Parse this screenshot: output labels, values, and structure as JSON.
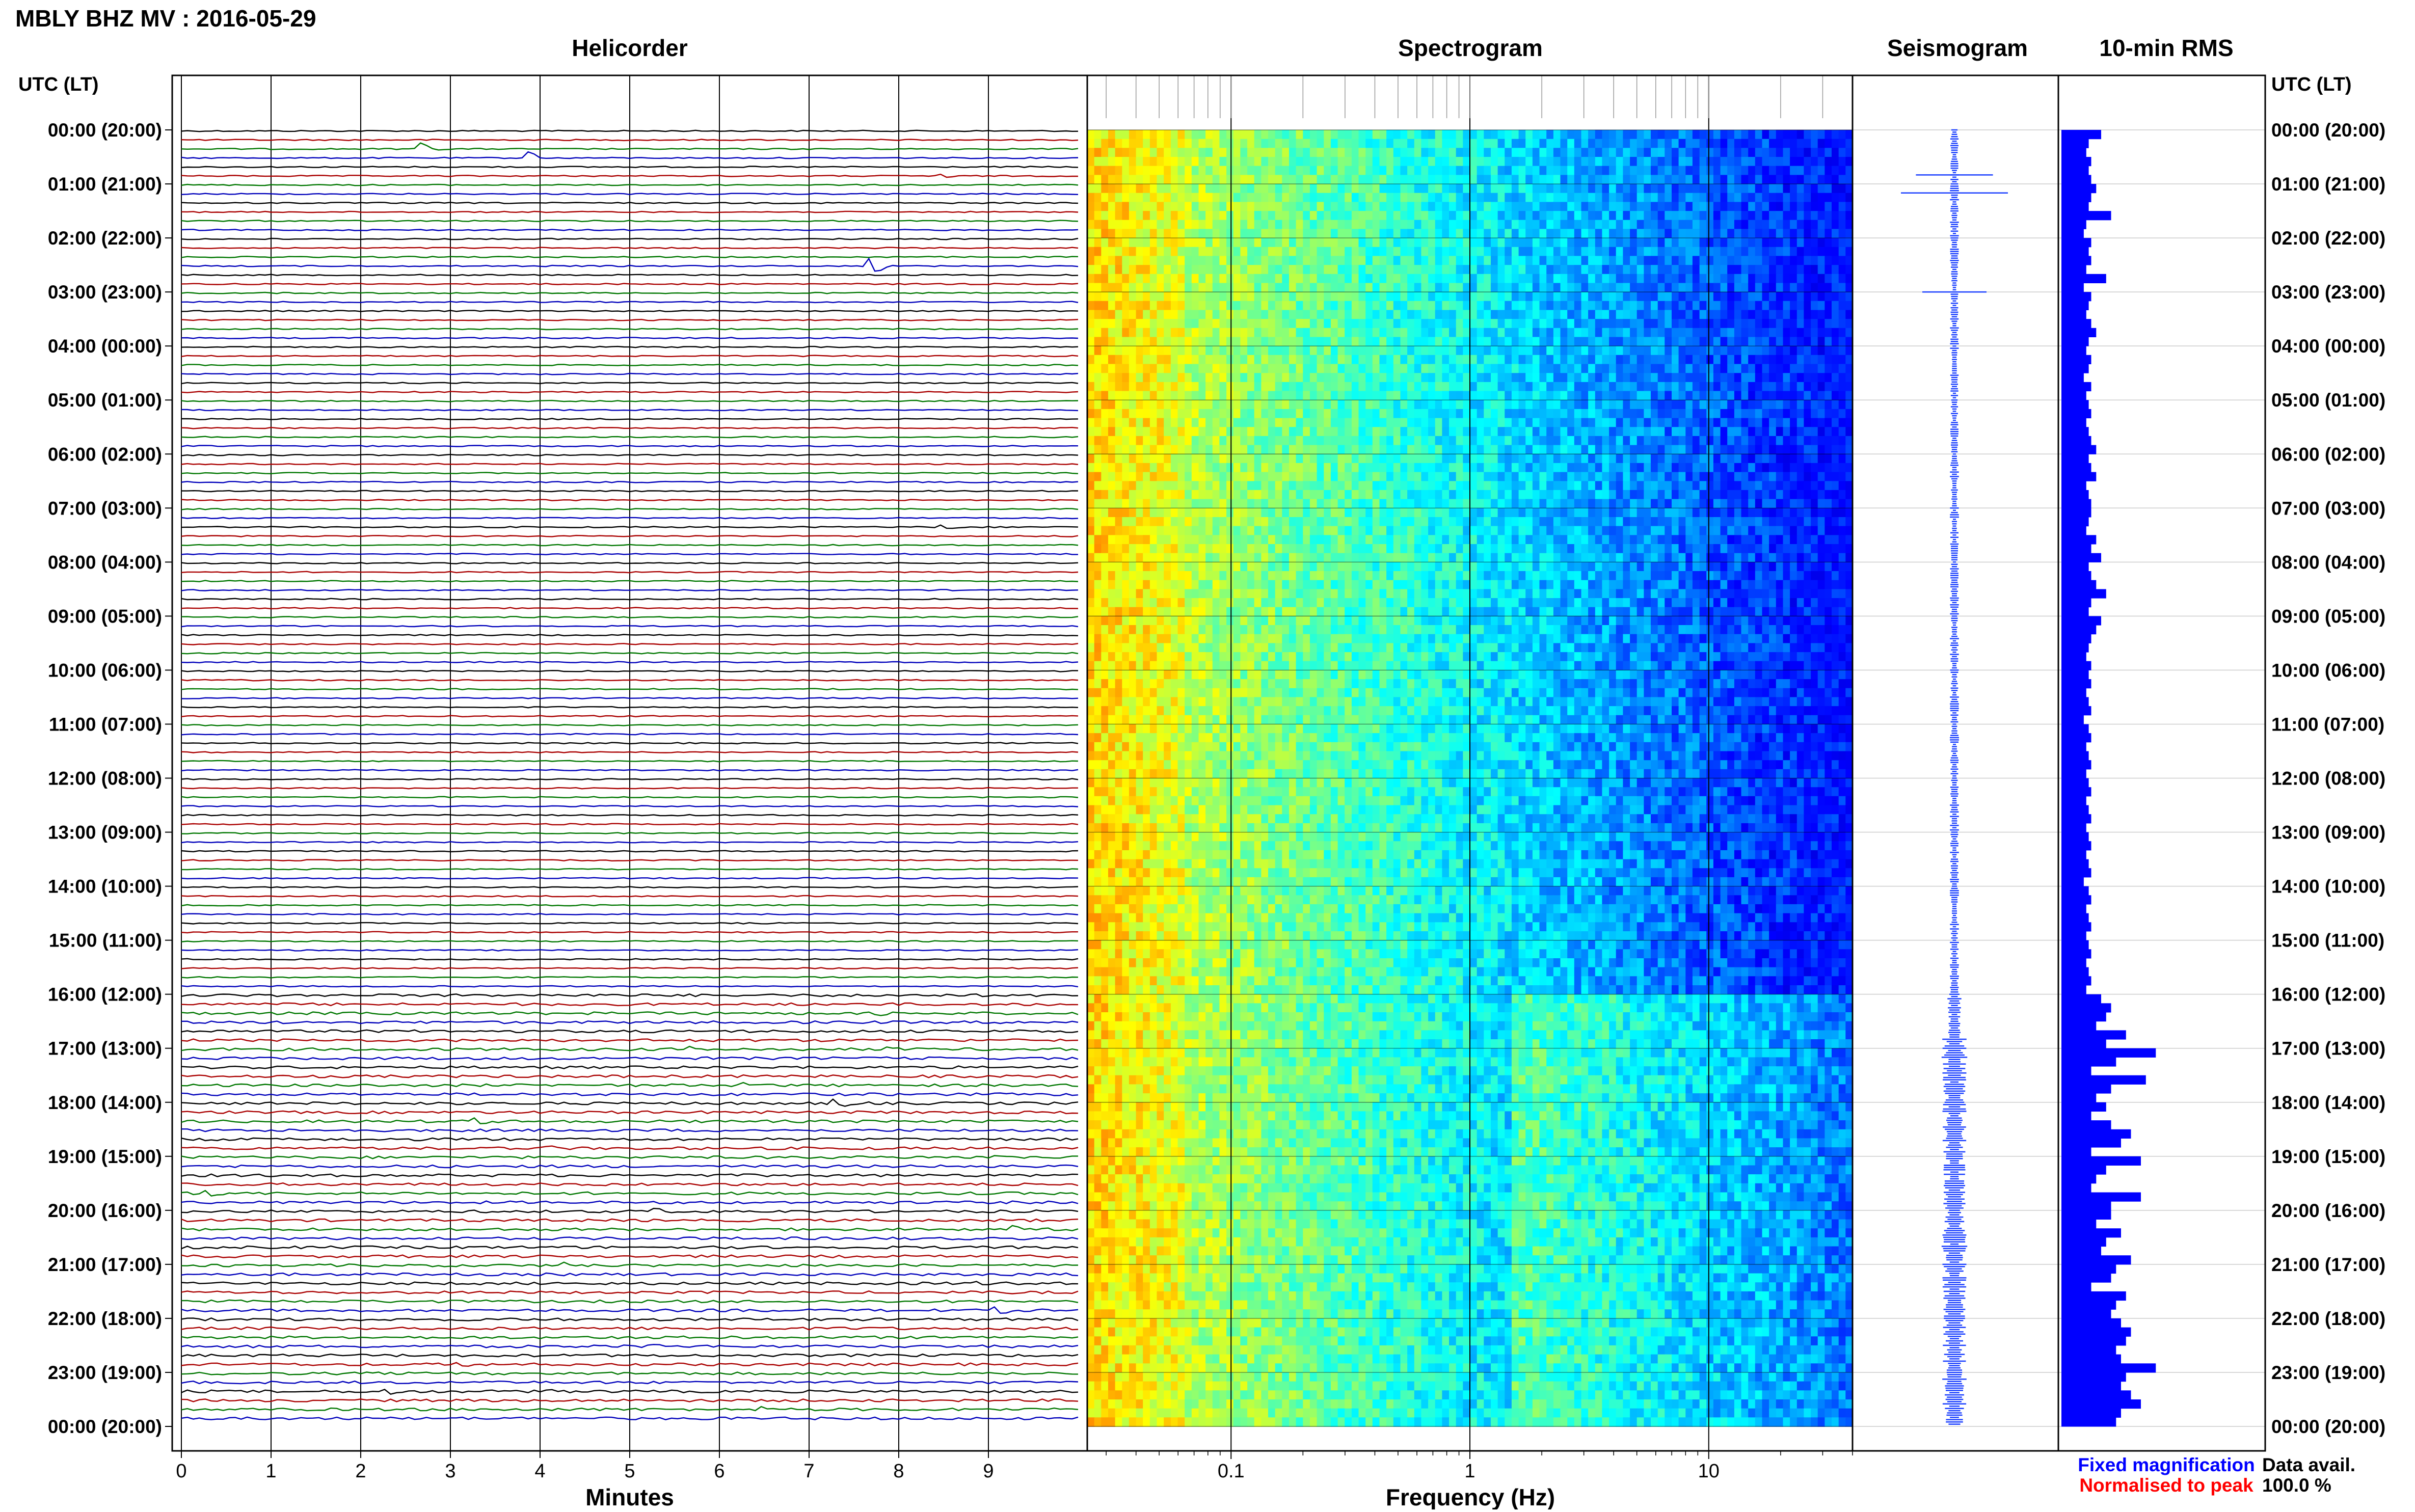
{
  "figure": {
    "title": "MBLY BHZ MV : 2016-05-29",
    "utc_lt_label": "UTC (LT)",
    "legend_fixed": "Fixed magnification",
    "legend_normalised": "Normalised to peak",
    "data_avail_label": "Data avail.",
    "data_avail_value": "100.0 %",
    "colors": {
      "trace_cycle": [
        "#000000",
        "#aa0000",
        "#007700",
        "#0000bb"
      ],
      "seismogram": "#1a3fff",
      "rms_bar": "#0000ff",
      "legend_fixed": "#0000ff",
      "legend_normalised": "#ff0000"
    }
  },
  "panels": {
    "helicorder": {
      "title": "Helicorder",
      "xlabel": "Minutes",
      "xticks": [
        "0",
        "1",
        "2",
        "3",
        "4",
        "5",
        "6",
        "7",
        "8",
        "9"
      ],
      "xrange": [
        0,
        10
      ]
    },
    "spectrogram": {
      "title": "Spectrogram",
      "xlabel": "Frequency (Hz)",
      "xticks": [
        "0.1",
        "1",
        "10"
      ],
      "scale": "log",
      "xrange": [
        0.025,
        40
      ]
    },
    "seismogram": {
      "title": "Seismogram"
    },
    "rms": {
      "title": "10-min RMS"
    }
  },
  "time_labels": [
    "00:00 (20:00)",
    "01:00 (21:00)",
    "02:00 (22:00)",
    "03:00 (23:00)",
    "04:00 (00:00)",
    "05:00 (01:00)",
    "06:00 (02:00)",
    "07:00 (03:00)",
    "08:00 (04:00)",
    "09:00 (05:00)",
    "10:00 (06:00)",
    "11:00 (07:00)",
    "12:00 (08:00)",
    "13:00 (09:00)",
    "14:00 (10:00)",
    "15:00 (11:00)",
    "16:00 (12:00)",
    "17:00 (13:00)",
    "18:00 (14:00)",
    "19:00 (15:00)",
    "20:00 (16:00)",
    "21:00 (17:00)",
    "22:00 (18:00)",
    "23:00 (19:00)",
    "00:00 (20:00)"
  ],
  "chart_data": [
    {
      "type": "line",
      "panel": "helicorder",
      "xlabel": "Minutes",
      "x_ticks": [
        0,
        1,
        2,
        3,
        4,
        5,
        6,
        7,
        8,
        9
      ],
      "xlim": [
        0,
        10
      ],
      "rows": 144,
      "row_minutes": 10,
      "events": [
        {
          "row": 2,
          "minute": 2.6,
          "amp": 3.5
        },
        {
          "row": 3,
          "minute": 3.8,
          "amp": 3.5
        },
        {
          "row": 5,
          "minute": 8.5,
          "amp": 0.8
        },
        {
          "row": 15,
          "minute": 7.7,
          "amp": 3.0
        },
        {
          "row": 44,
          "minute": 8.5,
          "amp": 0.8
        },
        {
          "row": 98,
          "minute": 7.7,
          "amp": 0.9
        },
        {
          "row": 102,
          "minute": 5.6,
          "amp": 1.4
        },
        {
          "row": 102,
          "minute": 7.8,
          "amp": 1.0
        },
        {
          "row": 106,
          "minute": 6.2,
          "amp": 1.0
        },
        {
          "row": 108,
          "minute": 7.3,
          "amp": 1.5
        },
        {
          "row": 110,
          "minute": 3.3,
          "amp": 1.0
        },
        {
          "row": 113,
          "minute": 4.0,
          "amp": 1.0
        },
        {
          "row": 114,
          "minute": 9.0,
          "amp": 1.0
        },
        {
          "row": 118,
          "minute": 0.3,
          "amp": 1.2
        },
        {
          "row": 120,
          "minute": 5.2,
          "amp": 1.4
        },
        {
          "row": 122,
          "minute": 9.2,
          "amp": 1.4
        },
        {
          "row": 126,
          "minute": 4.2,
          "amp": 1.3
        },
        {
          "row": 128,
          "minute": 8.9,
          "amp": 1.2
        },
        {
          "row": 131,
          "minute": 9.1,
          "amp": 1.0
        },
        {
          "row": 135,
          "minute": 5.2,
          "amp": 1.0
        },
        {
          "row": 137,
          "minute": 3.1,
          "amp": 1.2
        },
        {
          "row": 140,
          "minute": 4.0,
          "amp": 1.2
        },
        {
          "row": 140,
          "minute": 2.3,
          "amp": 1.2
        },
        {
          "row": 142,
          "minute": 6.4,
          "amp": 1.0
        }
      ]
    },
    {
      "type": "heatmap",
      "panel": "spectrogram",
      "xlabel": "Frequency (Hz)",
      "x_scale": "log",
      "xlim": [
        0.025,
        40
      ],
      "x_ticks": [
        0.1,
        1,
        10
      ],
      "rows": 144,
      "colormap": "jet",
      "notes": "high power below ~0.1 Hz, decreasing with frequency; higher power above 1 Hz after 16:00 UTC"
    },
    {
      "type": "line",
      "panel": "seismogram",
      "rows": 144,
      "bursts": [
        {
          "row": 5,
          "amp": 1.8
        },
        {
          "row": 7,
          "amp": 2.5
        },
        {
          "row": 18,
          "amp": 1.5
        },
        {
          "row": 103,
          "amp": 0.6
        },
        {
          "row": 115,
          "amp": 0.5
        },
        {
          "row": 124,
          "amp": 0.6
        }
      ]
    },
    {
      "type": "bar",
      "panel": "rms",
      "orientation": "horizontal",
      "rows": 144,
      "row_minutes": 10,
      "values": [
        0.8,
        0.55,
        0.5,
        0.6,
        0.55,
        0.6,
        0.7,
        0.6,
        0.55,
        1.0,
        0.5,
        0.45,
        0.6,
        0.55,
        0.6,
        0.5,
        0.9,
        0.45,
        0.6,
        0.55,
        0.5,
        0.6,
        0.7,
        0.55,
        0.5,
        0.6,
        0.55,
        0.45,
        0.6,
        0.5,
        0.55,
        0.6,
        0.5,
        0.55,
        0.6,
        0.7,
        0.55,
        0.6,
        0.7,
        0.5,
        0.55,
        0.6,
        0.6,
        0.55,
        0.5,
        0.7,
        0.6,
        0.8,
        0.55,
        0.6,
        0.7,
        0.9,
        0.6,
        0.55,
        0.8,
        0.7,
        0.6,
        0.55,
        0.5,
        0.6,
        0.55,
        0.6,
        0.5,
        0.55,
        0.6,
        0.45,
        0.55,
        0.6,
        0.5,
        0.55,
        0.6,
        0.5,
        0.55,
        0.6,
        0.5,
        0.55,
        0.6,
        0.5,
        0.55,
        0.6,
        0.5,
        0.55,
        0.6,
        0.45,
        0.55,
        0.6,
        0.5,
        0.55,
        0.6,
        0.5,
        0.55,
        0.6,
        0.5,
        0.55,
        0.6,
        0.5,
        0.8,
        1.0,
        0.9,
        0.7,
        1.3,
        0.9,
        1.9,
        1.1,
        0.6,
        1.7,
        1.0,
        0.7,
        0.9,
        0.6,
        1.0,
        1.4,
        1.2,
        0.6,
        1.6,
        0.9,
        0.7,
        0.6,
        1.6,
        1.0,
        1.0,
        0.7,
        1.2,
        0.9,
        0.8,
        1.4,
        1.1,
        1.0,
        0.6,
        1.3,
        1.1,
        1.0,
        1.2,
        1.4,
        1.3,
        1.1,
        1.2,
        1.9,
        1.3,
        1.2,
        1.4,
        1.6,
        1.2,
        1.1
      ],
      "xlim": [
        0,
        4.0
      ]
    }
  ]
}
